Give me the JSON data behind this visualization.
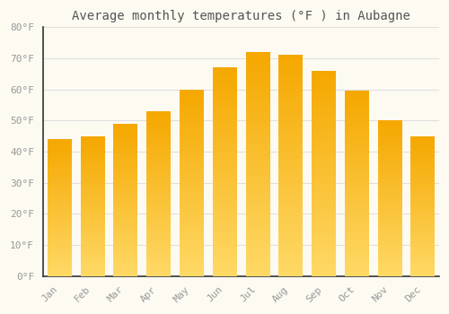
{
  "title": "Average monthly temperatures (°F ) in Aubagne",
  "months": [
    "Jan",
    "Feb",
    "Mar",
    "Apr",
    "May",
    "Jun",
    "Jul",
    "Aug",
    "Sep",
    "Oct",
    "Nov",
    "Dec"
  ],
  "values": [
    44,
    45,
    49,
    53,
    60,
    67,
    72,
    71,
    66,
    59.5,
    50,
    45
  ],
  "bar_color": "#F5A800",
  "bar_color_light": "#FFD966",
  "ylim": [
    0,
    80
  ],
  "yticks": [
    0,
    10,
    20,
    30,
    40,
    50,
    60,
    70,
    80
  ],
  "ytick_labels": [
    "0°F",
    "10°F",
    "20°F",
    "30°F",
    "40°F",
    "50°F",
    "60°F",
    "70°F",
    "80°F"
  ],
  "background_color": "#FDFAF2",
  "grid_color": "#E0E0E0",
  "title_fontsize": 10,
  "tick_fontsize": 8,
  "font_color": "#999999",
  "title_color": "#555555"
}
